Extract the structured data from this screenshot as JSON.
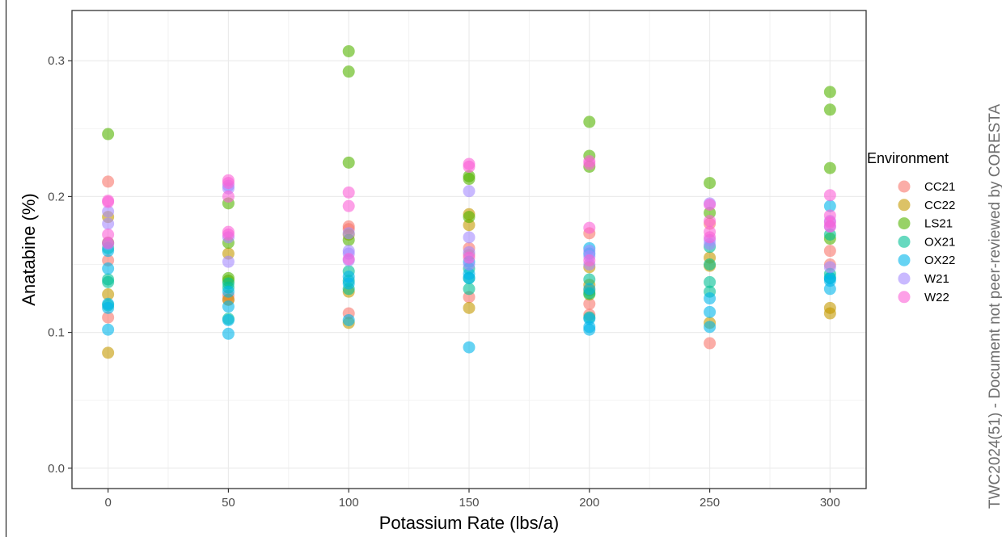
{
  "watermark": "TWC2024(51) - Document not peer-reviewed by CORESTA",
  "chart_data": {
    "type": "scatter",
    "xlabel": "Potassium Rate (lbs/a)",
    "ylabel": "Anatabine (%)",
    "x_ticks": [
      0,
      50,
      100,
      150,
      200,
      250,
      300
    ],
    "y_ticks": [
      0.0,
      0.1,
      0.2,
      0.3
    ],
    "y_tick_labels": [
      "0.0",
      "0.1",
      "0.2",
      "0.3"
    ],
    "xlim": [
      -15,
      315
    ],
    "ylim": [
      -0.015,
      0.337
    ],
    "grid": true,
    "legend": {
      "title": "Environment",
      "position": "right"
    },
    "series": [
      {
        "name": "CC21",
        "color": "#F8766D",
        "points": [
          [
            0,
            0.211
          ],
          [
            0,
            0.153
          ],
          [
            0,
            0.111
          ],
          [
            50,
            0.124
          ],
          [
            50,
            0.127
          ],
          [
            100,
            0.178
          ],
          [
            100,
            0.176
          ],
          [
            100,
            0.114
          ],
          [
            150,
            0.162
          ],
          [
            150,
            0.157
          ],
          [
            150,
            0.126
          ],
          [
            200,
            0.173
          ],
          [
            200,
            0.121
          ],
          [
            200,
            0.113
          ],
          [
            250,
            0.18
          ],
          [
            250,
            0.092
          ],
          [
            300,
            0.16
          ],
          [
            300,
            0.15
          ]
        ]
      },
      {
        "name": "CC22",
        "color": "#C49A00",
        "points": [
          [
            0,
            0.185
          ],
          [
            0,
            0.128
          ],
          [
            0,
            0.085
          ],
          [
            50,
            0.158
          ],
          [
            50,
            0.124
          ],
          [
            100,
            0.172
          ],
          [
            100,
            0.13
          ],
          [
            100,
            0.107
          ],
          [
            150,
            0.187
          ],
          [
            150,
            0.179
          ],
          [
            150,
            0.118
          ],
          [
            200,
            0.148
          ],
          [
            200,
            0.135
          ],
          [
            200,
            0.131
          ],
          [
            250,
            0.155
          ],
          [
            250,
            0.149
          ],
          [
            250,
            0.107
          ],
          [
            300,
            0.118
          ],
          [
            300,
            0.114
          ]
        ]
      },
      {
        "name": "LS21",
        "color": "#53B400",
        "points": [
          [
            0,
            0.246
          ],
          [
            0,
            0.166
          ],
          [
            50,
            0.195
          ],
          [
            50,
            0.166
          ],
          [
            50,
            0.14
          ],
          [
            50,
            0.138
          ],
          [
            100,
            0.307
          ],
          [
            100,
            0.292
          ],
          [
            100,
            0.225
          ],
          [
            100,
            0.168
          ],
          [
            150,
            0.215
          ],
          [
            150,
            0.213
          ],
          [
            150,
            0.185
          ],
          [
            200,
            0.255
          ],
          [
            200,
            0.23
          ],
          [
            200,
            0.222
          ],
          [
            200,
            0.128
          ],
          [
            250,
            0.21
          ],
          [
            250,
            0.188
          ],
          [
            300,
            0.277
          ],
          [
            300,
            0.264
          ],
          [
            300,
            0.221
          ],
          [
            300,
            0.169
          ]
        ]
      },
      {
        "name": "OX21",
        "color": "#00C094",
        "points": [
          [
            0,
            0.162
          ],
          [
            0,
            0.139
          ],
          [
            0,
            0.137
          ],
          [
            0,
            0.12
          ],
          [
            50,
            0.136
          ],
          [
            50,
            0.133
          ],
          [
            50,
            0.11
          ],
          [
            100,
            0.145
          ],
          [
            100,
            0.138
          ],
          [
            100,
            0.132
          ],
          [
            150,
            0.147
          ],
          [
            150,
            0.14
          ],
          [
            150,
            0.132
          ],
          [
            200,
            0.139
          ],
          [
            200,
            0.129
          ],
          [
            200,
            0.111
          ],
          [
            250,
            0.163
          ],
          [
            250,
            0.15
          ],
          [
            250,
            0.137
          ],
          [
            250,
            0.13
          ],
          [
            300,
            0.172
          ],
          [
            300,
            0.143
          ],
          [
            300,
            0.14
          ]
        ]
      },
      {
        "name": "OX22",
        "color": "#00B6EB",
        "points": [
          [
            0,
            0.16
          ],
          [
            0,
            0.147
          ],
          [
            0,
            0.121
          ],
          [
            0,
            0.118
          ],
          [
            0,
            0.102
          ],
          [
            50,
            0.13
          ],
          [
            50,
            0.119
          ],
          [
            50,
            0.109
          ],
          [
            50,
            0.099
          ],
          [
            100,
            0.141
          ],
          [
            100,
            0.136
          ],
          [
            100,
            0.109
          ],
          [
            150,
            0.152
          ],
          [
            150,
            0.143
          ],
          [
            150,
            0.14
          ],
          [
            150,
            0.089
          ],
          [
            200,
            0.162
          ],
          [
            200,
            0.158
          ],
          [
            200,
            0.132
          ],
          [
            200,
            0.11
          ],
          [
            200,
            0.104
          ],
          [
            200,
            0.102
          ],
          [
            250,
            0.125
          ],
          [
            250,
            0.115
          ],
          [
            250,
            0.104
          ],
          [
            300,
            0.193
          ],
          [
            300,
            0.14
          ],
          [
            300,
            0.138
          ],
          [
            300,
            0.132
          ]
        ]
      },
      {
        "name": "W21",
        "color": "#A58AFF",
        "points": [
          [
            0,
            0.189
          ],
          [
            0,
            0.18
          ],
          [
            0,
            0.165
          ],
          [
            50,
            0.208
          ],
          [
            50,
            0.206
          ],
          [
            50,
            0.17
          ],
          [
            50,
            0.152
          ],
          [
            100,
            0.173
          ],
          [
            100,
            0.16
          ],
          [
            100,
            0.158
          ],
          [
            100,
            0.153
          ],
          [
            150,
            0.204
          ],
          [
            150,
            0.17
          ],
          [
            150,
            0.159
          ],
          [
            150,
            0.15
          ],
          [
            200,
            0.16
          ],
          [
            200,
            0.156
          ],
          [
            200,
            0.15
          ],
          [
            250,
            0.195
          ],
          [
            250,
            0.168
          ],
          [
            250,
            0.165
          ],
          [
            300,
            0.182
          ],
          [
            300,
            0.178
          ],
          [
            300,
            0.148
          ]
        ]
      },
      {
        "name": "W22",
        "color": "#FB61D7",
        "points": [
          [
            0,
            0.197
          ],
          [
            0,
            0.196
          ],
          [
            0,
            0.172
          ],
          [
            0,
            0.166
          ],
          [
            50,
            0.212
          ],
          [
            50,
            0.21
          ],
          [
            50,
            0.2
          ],
          [
            50,
            0.174
          ],
          [
            50,
            0.172
          ],
          [
            100,
            0.203
          ],
          [
            100,
            0.193
          ],
          [
            100,
            0.154
          ],
          [
            150,
            0.224
          ],
          [
            150,
            0.222
          ],
          [
            150,
            0.155
          ],
          [
            200,
            0.226
          ],
          [
            200,
            0.224
          ],
          [
            200,
            0.177
          ],
          [
            200,
            0.153
          ],
          [
            250,
            0.194
          ],
          [
            250,
            0.182
          ],
          [
            250,
            0.174
          ],
          [
            250,
            0.17
          ],
          [
            300,
            0.201
          ],
          [
            300,
            0.186
          ],
          [
            300,
            0.181
          ],
          [
            300,
            0.178
          ]
        ]
      }
    ]
  }
}
